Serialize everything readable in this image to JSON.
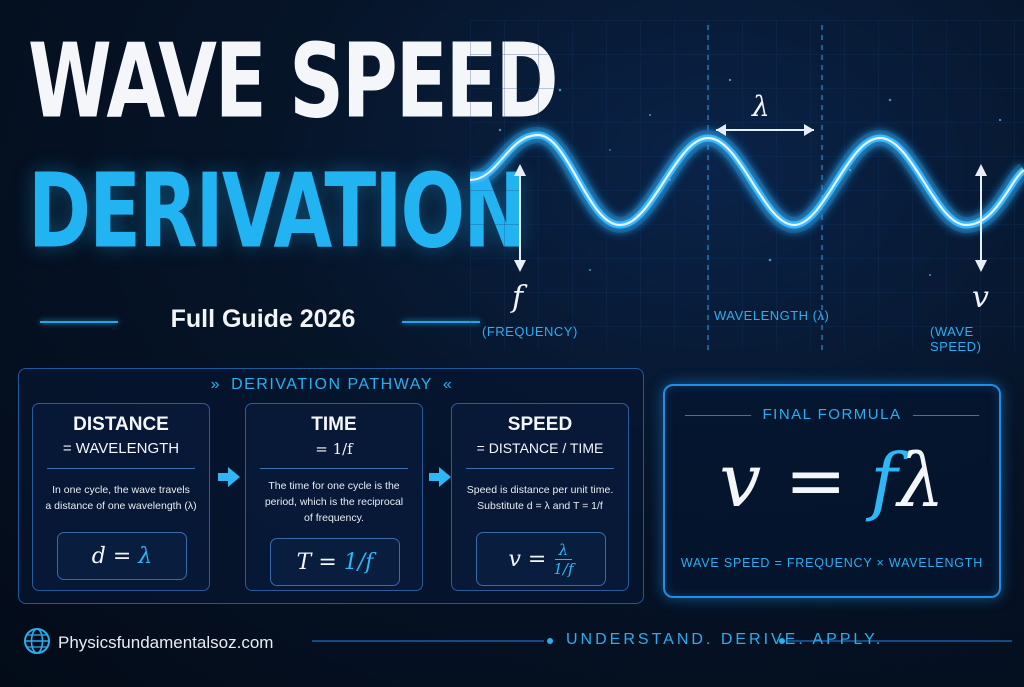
{
  "title": {
    "line1": "WAVE SPEED",
    "line2": "DERIVATION",
    "subtitle": "Full Guide 2026"
  },
  "wave": {
    "lambda_symbol": "λ",
    "f_symbol": "f",
    "f_label": "(FREQUENCY)",
    "wavelength_label": "WAVELENGTH (λ)",
    "v_symbol": "v",
    "v_label": "(WAVE SPEED)"
  },
  "pathway": {
    "title": "DERIVATION PATHWAY",
    "steps": [
      {
        "head": "DISTANCE",
        "sub": "= WAVELENGTH",
        "desc_line1": "In one cycle, the wave travels",
        "desc_line2": "a distance of one wavelength (λ)",
        "eq_left": "d = ",
        "eq_right": "λ"
      },
      {
        "head": "TIME",
        "sub": "= 1/f",
        "desc_line1": "The time for one cycle is the",
        "desc_line2": "period, which is the reciprocal",
        "desc_line3": "of frequency.",
        "eq_left": "T = ",
        "eq_right": "1/f"
      },
      {
        "head": "SPEED",
        "sub": "= DISTANCE / TIME",
        "desc_line1": "Speed is distance per unit time.",
        "desc_line2": "Substitute d = λ and T = 1/f",
        "eq_left": "v = ",
        "eq_num": "λ",
        "eq_den": "1/f"
      }
    ]
  },
  "final": {
    "title": "FINAL FORMULA",
    "v": "v",
    "eq": " = ",
    "f": "f",
    "lambda": "λ",
    "caption": "WAVE SPEED = FREQUENCY × WAVELENGTH"
  },
  "footer": {
    "site": "Physicsfundamentalsoz.com",
    "tagline": "UNDERSTAND. DERIVE. APPLY."
  },
  "colors": {
    "accent": "#2aaef0",
    "background": "#061428",
    "title_white": "#f4f6fa",
    "title_blue": "#22b3f2"
  },
  "icons": [
    "globe-icon",
    "arrow-right-icon",
    "double-arrow-icon"
  ]
}
